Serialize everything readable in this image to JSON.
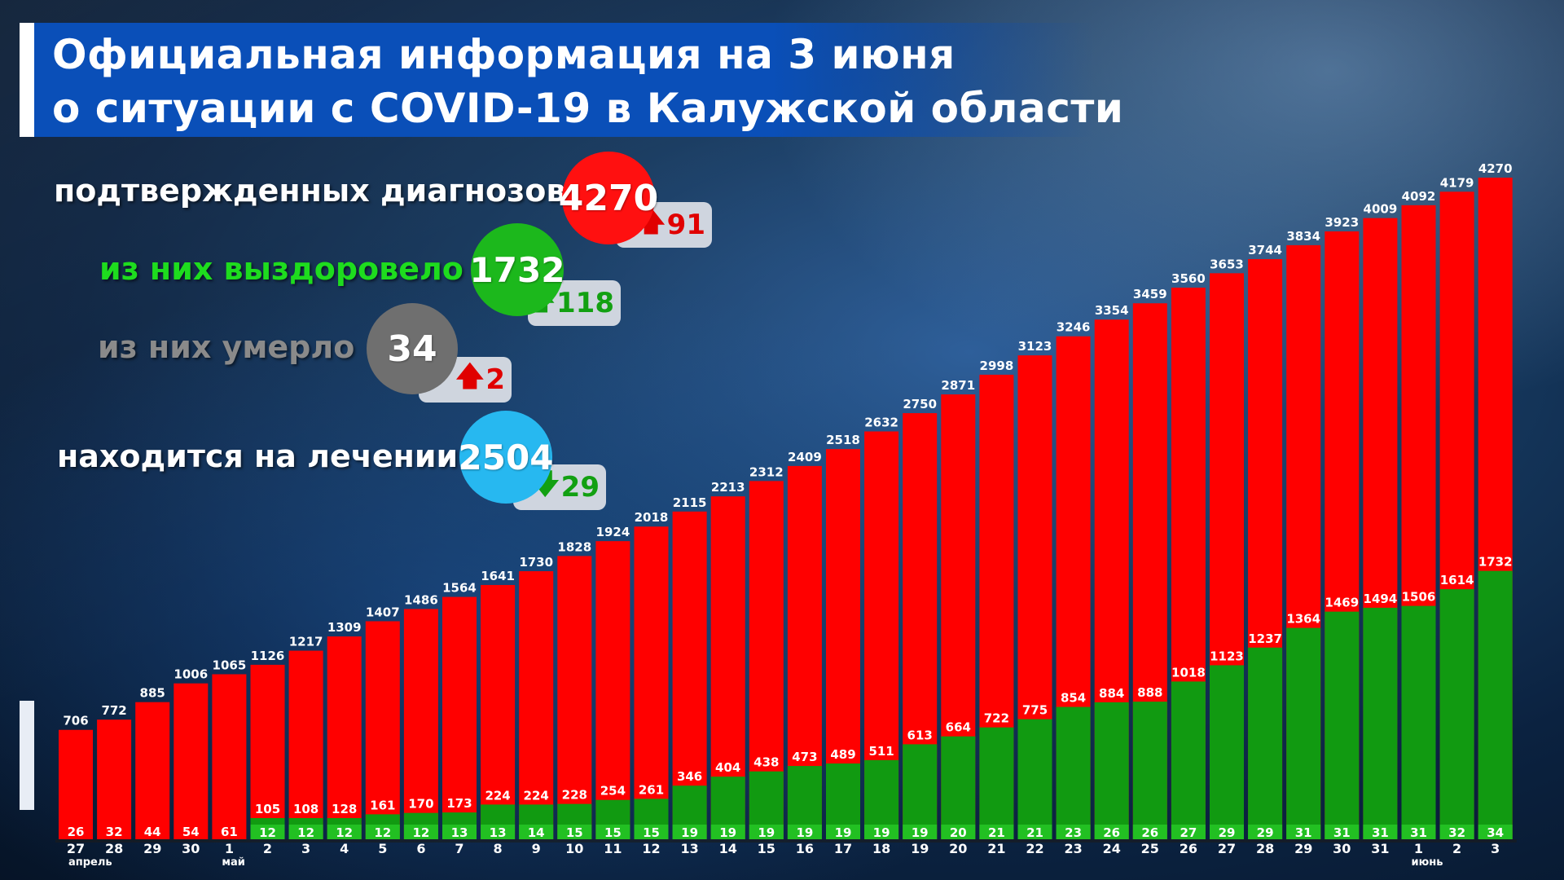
{
  "header": {
    "title_line_1": "Официальная информация на 3 июня",
    "title_line_2": "о ситуации с COVID-19 в Калужской области"
  },
  "stats": {
    "confirmed": {
      "label": "подтвержденных диагнозов",
      "value": "4270",
      "delta": "91",
      "direction": "up",
      "color": "#ff1010"
    },
    "recovered": {
      "label": "из них выздоровело",
      "value": "1732",
      "delta": "118",
      "direction": "up",
      "color": "#1cb81c"
    },
    "deaths": {
      "label": "из них умерло",
      "value": "34",
      "delta": "2",
      "direction": "up",
      "color": "#6f6f6f"
    },
    "in_treatment": {
      "label": "находится на лечении",
      "value": "2504",
      "delta": "29",
      "direction": "down",
      "color": "#27b8f0"
    }
  },
  "colors": {
    "confirmed_bar": "#ff0000",
    "recovered_bar": "#119a11",
    "deaths_bar": "#22c022",
    "arrow_up": "#e00000",
    "arrow_down": "#12a012"
  },
  "chart_data": {
    "type": "bar",
    "x": [
      "27",
      "28",
      "29",
      "30",
      "1",
      "2",
      "3",
      "4",
      "5",
      "6",
      "7",
      "8",
      "9",
      "10",
      "11",
      "12",
      "13",
      "14",
      "15",
      "16",
      "17",
      "18",
      "19",
      "20",
      "21",
      "22",
      "23",
      "24",
      "25",
      "26",
      "27",
      "28",
      "29",
      "30",
      "31",
      "1",
      "2",
      "3"
    ],
    "month_labels": [
      {
        "index": 0,
        "text": "апрель"
      },
      {
        "index": 4,
        "text": "май"
      },
      {
        "index": 35,
        "text": "июнь"
      }
    ],
    "series": [
      {
        "values": [
          706,
          772,
          885,
          1006,
          1065,
          1126,
          1217,
          1309,
          1407,
          1486,
          1564,
          1641,
          1730,
          1828,
          1924,
          2018,
          2115,
          2213,
          2312,
          2409,
          2518,
          2632,
          2750,
          2871,
          2998,
          3123,
          3246,
          3354,
          3459,
          3560,
          3653,
          3744,
          3834,
          3923,
          4009,
          4092,
          4179,
          4270
        ]
      },
      {
        "values": [
          26,
          32,
          44,
          54,
          61,
          105,
          108,
          128,
          161,
          170,
          173,
          224,
          224,
          228,
          254,
          261,
          346,
          404,
          438,
          473,
          489,
          511,
          613,
          664,
          722,
          775,
          854,
          884,
          888,
          1018,
          1123,
          1237,
          1364,
          1469,
          1494,
          1506,
          1614,
          1732
        ]
      },
      {
        "values": [
          0,
          0,
          0,
          0,
          0,
          12,
          12,
          12,
          12,
          12,
          13,
          13,
          14,
          15,
          15,
          15,
          19,
          19,
          19,
          19,
          19,
          19,
          19,
          20,
          21,
          21,
          23,
          26,
          26,
          27,
          29,
          29,
          31,
          31,
          31,
          31,
          32,
          34
        ]
      }
    ],
    "ylim": [
      0,
      4270
    ]
  }
}
